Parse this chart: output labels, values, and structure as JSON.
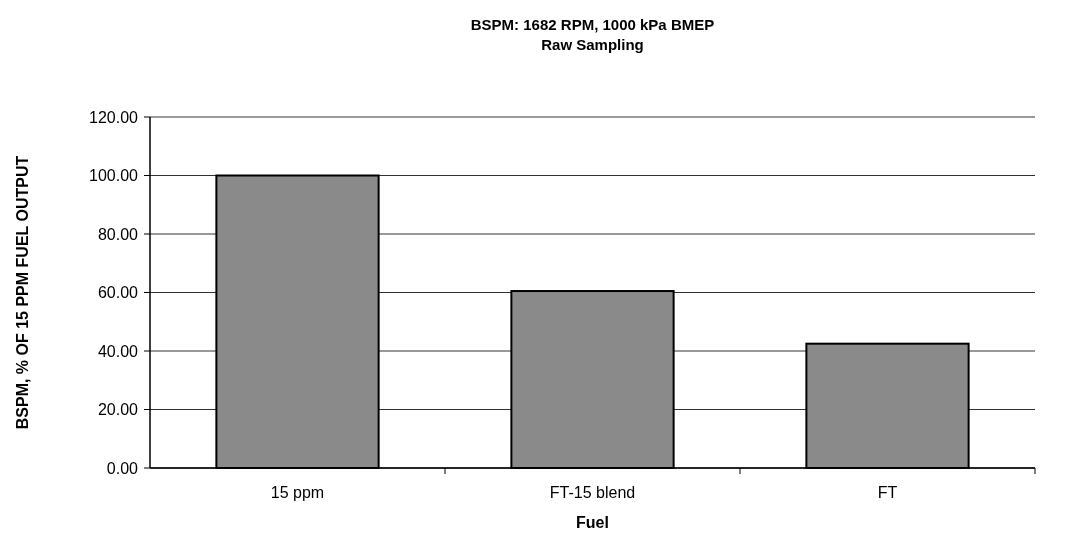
{
  "chart_data": {
    "type": "bar",
    "title": "BSPM: 1682 RPM, 1000 kPa BMEP",
    "subtitle": "Raw Sampling",
    "xlabel": "Fuel",
    "ylabel": "BSPM, % OF 15 PPM FUEL OUTPUT",
    "categories": [
      "15 ppm",
      "FT-15 blend",
      "FT"
    ],
    "values": [
      100,
      60.5,
      42.5
    ],
    "color": "#8a8a8a",
    "ylim": [
      0,
      120
    ],
    "yticks": [
      {
        "value": 0,
        "label": "0.00"
      },
      {
        "value": 20,
        "label": "20.00"
      },
      {
        "value": 40,
        "label": "40.00"
      },
      {
        "value": 60,
        "label": "60.00"
      },
      {
        "value": 80,
        "label": "80.00"
      },
      {
        "value": 100,
        "label": "100.00"
      },
      {
        "value": 120,
        "label": "120.00"
      }
    ],
    "grid": "y"
  }
}
